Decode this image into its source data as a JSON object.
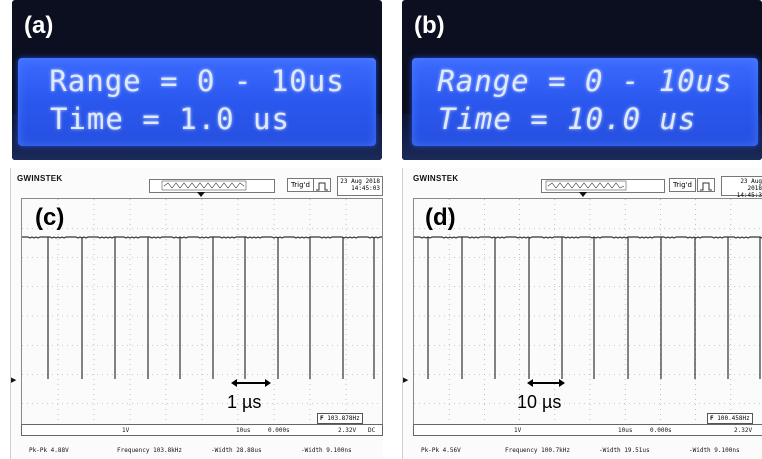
{
  "panels": {
    "a": {
      "label": "(a)",
      "line1": "Range = 0 - 10us",
      "line2": "Time = 1.0 us"
    },
    "b": {
      "label": "(b)",
      "line1": "Range = 0 - 10us",
      "line2": "Time = 10.0 us"
    },
    "c": {
      "label": "(c)",
      "brand": "GWINSTEK",
      "trig": "Trig'd",
      "date": "23 Aug 2018",
      "time": "14:45:03",
      "marker": "1 µs",
      "freq_readout": "103.878Hz",
      "status_ch": "1V",
      "status_tb": "10us",
      "status_pos": "0.000s",
      "status_trig": "2.32V",
      "status_dc": "DC",
      "meas1": "Pk-Pk 4.88V",
      "meas2": "Frequency 103.8kHz",
      "meas3": "-Width 28.88us",
      "meas4": "-Width 9.100ns"
    },
    "d": {
      "label": "(d)",
      "brand": "GWINSTEK",
      "trig": "Trig'd",
      "date": "23 Aug 2018",
      "time": "14:45:3",
      "marker": "10 µs",
      "freq_readout": "100.458Hz",
      "status_ch": "1V",
      "status_tb": "10us",
      "status_pos": "0.000s",
      "status_trig": "2.32V",
      "status_dc": "",
      "meas1": "Pk-Pk 4.56V",
      "meas2": "Frequency 100.7kHz",
      "meas3": "-Width 19.51us",
      "meas4": "-Width 9.100ns"
    }
  },
  "colors": {
    "lcd_backlight": "#2a57ee",
    "lcd_text": "#dfe9ff",
    "trace": "#333333"
  }
}
